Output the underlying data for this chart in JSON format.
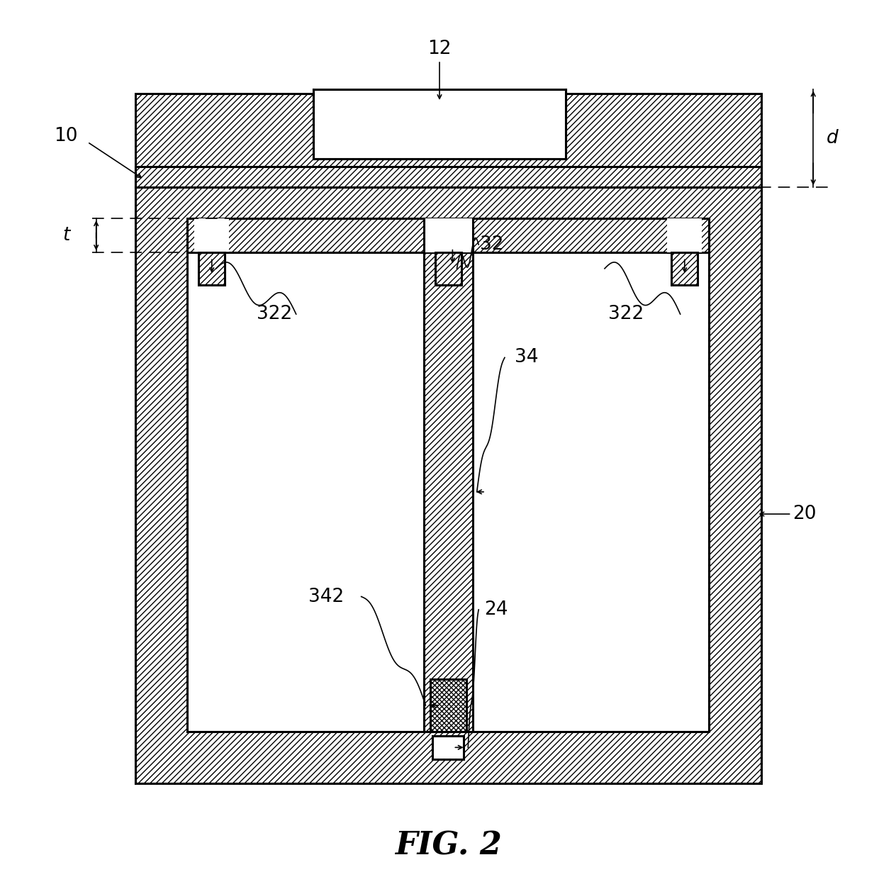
{
  "title": "FIG. 2",
  "bg": "#ffffff",
  "lc": "#000000",
  "lw_thick": 2.2,
  "lw_thin": 1.2,
  "figsize": [
    12.4,
    12.54
  ],
  "dpi": 100,
  "fs_label": 19,
  "fs_title": 32
}
